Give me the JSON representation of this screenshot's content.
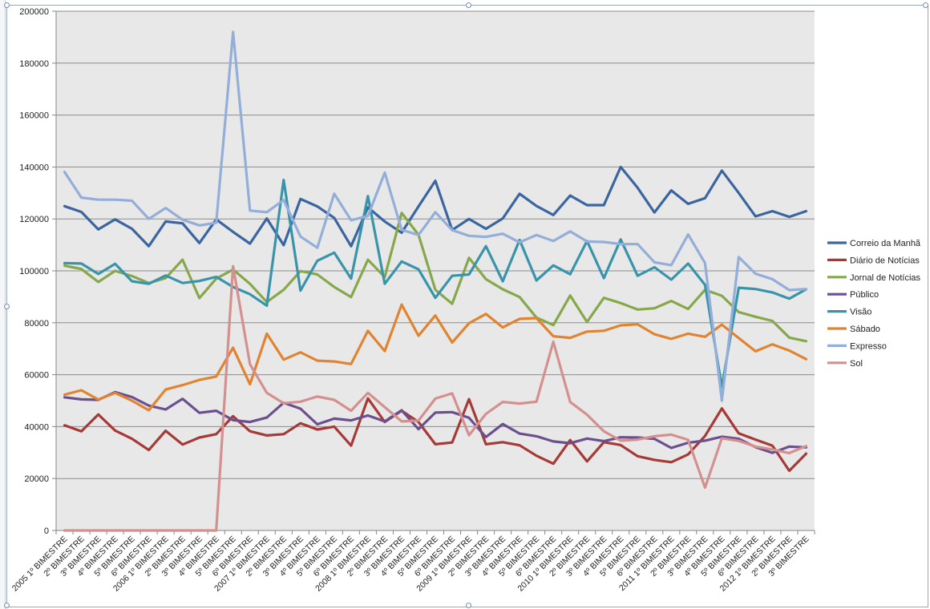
{
  "chart_data": {
    "type": "line",
    "title": "",
    "xlabel": "",
    "ylabel": "",
    "ylim": [
      0,
      200000
    ],
    "yticks": [
      "0",
      "20000",
      "40000",
      "60000",
      "80000",
      "100000",
      "120000",
      "140000",
      "160000",
      "180000",
      "200000"
    ],
    "grid": true,
    "legend_position": "right",
    "plot_background": "#e8e8e8",
    "categories": [
      "2005 1º BIMESTRE",
      "2º BIMESTRE",
      "3º BIMESTRE",
      "4º BIMESTRE",
      "5º BIMESTRE",
      "6º BIMESTRE",
      "2006 1º BIMESTRE",
      "2º BIMESTRE",
      "3º BIMESTRE",
      "4º BIMESTRE",
      "5º BIMESTRE",
      "6º BIMESTRE",
      "2007 1º BIMESTRE",
      "2º BIMESTRE",
      "3º BIMESTRE",
      "4º BIMESTRE",
      "5º BIMESTRE",
      "6º BIMESTRE",
      "2008 1º BIMESTRE",
      "2º BIMESTRE",
      "3º BIMESTRE",
      "4º BIMESTRE",
      "5º BIMESTRE",
      "6º BIMESTRE",
      "2009 1º BIMESTRE",
      "2º BIMESTRE",
      "3º BIMESTRE",
      "4º BIMESTRE",
      "5º BIMESTRE",
      "6º BIMESTRE",
      "2010 1º BIMESTRE",
      "2º BIMESTRE",
      "3º BIMESTRE",
      "4º BIMESTRE",
      "5º BIMESTRE",
      "6º BIMESTRE",
      "2011 1º BIMESTRE",
      "2º BIMESTRE",
      "3º BIMESTRE",
      "4º BIMESTRE",
      "5º BIMESTRE",
      "6º BIMESTRE",
      "2012 1º BIMESTRE",
      "2º BIMESTRE",
      "3º BIMESTRE"
    ],
    "series": [
      {
        "name": "Correio da Manhã",
        "color": "#3a65a0",
        "values": [
          124900,
          122700,
          116000,
          119800,
          116200,
          109500,
          119000,
          118300,
          110700,
          119800,
          115000,
          110500,
          120200,
          109900,
          127700,
          124800,
          120400,
          109500,
          124400,
          119000,
          114700,
          124800,
          134700,
          115700,
          120000,
          116200,
          120200,
          129700,
          125000,
          121500,
          129000,
          125300,
          125300,
          140000,
          132000,
          122500,
          131000,
          125800,
          128000,
          138600,
          130000,
          121000,
          123000,
          120800,
          123000
        ]
      },
      {
        "name": "Diário de Notícias",
        "color": "#a63a37",
        "values": [
          40500,
          38200,
          44700,
          38500,
          35300,
          31000,
          38400,
          33100,
          35800,
          37100,
          44000,
          38200,
          36600,
          37100,
          41300,
          38900,
          40000,
          32700,
          50900,
          41800,
          46100,
          41800,
          33200,
          33900,
          50600,
          33200,
          34000,
          32800,
          28800,
          25700,
          34800,
          26600,
          34000,
          32900,
          28600,
          27200,
          26300,
          29300,
          36400,
          47000,
          37400,
          35000,
          32700,
          23000,
          29600
        ]
      },
      {
        "name": "Jornal de Notícias",
        "color": "#86a84a",
        "values": [
          102000,
          100700,
          95700,
          100000,
          98000,
          95300,
          97200,
          104300,
          89500,
          97000,
          100500,
          95000,
          88000,
          92700,
          99900,
          98600,
          93800,
          89900,
          104300,
          97600,
          122300,
          113900,
          92700,
          87300,
          105000,
          96800,
          92900,
          89900,
          82000,
          79100,
          90500,
          80300,
          89600,
          87600,
          85100,
          85600,
          88400,
          85300,
          92700,
          90400,
          84100,
          82300,
          80700,
          74300,
          72900
        ]
      },
      {
        "name": "Público",
        "color": "#6b4f8e",
        "values": [
          51300,
          50500,
          50300,
          53300,
          51400,
          48100,
          46600,
          50700,
          45300,
          46100,
          42500,
          41800,
          43500,
          49200,
          46900,
          40900,
          43100,
          42400,
          44300,
          42000,
          46300,
          39000,
          45400,
          45600,
          43400,
          36000,
          41000,
          37300,
          36300,
          34300,
          33600,
          35400,
          34400,
          35900,
          35800,
          35300,
          31800,
          33800,
          34600,
          36100,
          35300,
          32100,
          29900,
          32300,
          32000
        ]
      },
      {
        "name": "Visão",
        "color": "#3894aa",
        "values": [
          103000,
          102800,
          98800,
          102700,
          96000,
          95000,
          98200,
          95300,
          96100,
          97700,
          93800,
          91000,
          86600,
          135000,
          92400,
          103900,
          107000,
          97000,
          128800,
          95000,
          103600,
          100600,
          89600,
          98100,
          98600,
          109500,
          96000,
          111900,
          96300,
          102100,
          98700,
          111500,
          97200,
          112100,
          98100,
          101400,
          96600,
          102800,
          94600,
          55200,
          93500,
          93000,
          91700,
          89300,
          92900
        ]
      },
      {
        "name": "Sábado",
        "color": "#e08431",
        "values": [
          52300,
          54000,
          50400,
          53000,
          50000,
          46300,
          54300,
          56000,
          58000,
          59300,
          70400,
          56300,
          75800,
          65800,
          68600,
          65400,
          65100,
          64100,
          76900,
          69100,
          87000,
          75000,
          82800,
          72400,
          79800,
          83400,
          78200,
          81500,
          81800,
          74800,
          74200,
          76600,
          76900,
          79000,
          79400,
          75600,
          73800,
          75800,
          74600,
          79300,
          74100,
          69000,
          71700,
          69300,
          66000
        ]
      },
      {
        "name": "Expresso",
        "color": "#93aed8",
        "values": [
          138100,
          128200,
          127400,
          127400,
          127000,
          120000,
          124200,
          119700,
          117500,
          118500,
          192000,
          123200,
          122600,
          127300,
          113200,
          108900,
          129700,
          119500,
          121100,
          137800,
          115800,
          113800,
          122600,
          115700,
          113500,
          113100,
          114300,
          111000,
          113800,
          111500,
          115200,
          111300,
          111100,
          110300,
          110300,
          103300,
          102200,
          114000,
          103000,
          50000,
          105300,
          98900,
          96800,
          92600,
          93000
        ]
      },
      {
        "name": "Sol",
        "color": "#d4908e",
        "values": [
          0,
          0,
          0,
          0,
          0,
          0,
          0,
          0,
          0,
          0,
          101800,
          64000,
          53000,
          49000,
          49600,
          51600,
          50300,
          46100,
          53000,
          47500,
          42000,
          42300,
          50800,
          52800,
          36700,
          44900,
          49500,
          48900,
          49600,
          72700,
          49500,
          44600,
          38200,
          34600,
          35000,
          36300,
          36900,
          34900,
          16500,
          35500,
          34500,
          32300,
          31200,
          29800,
          32500
        ]
      }
    ]
  }
}
